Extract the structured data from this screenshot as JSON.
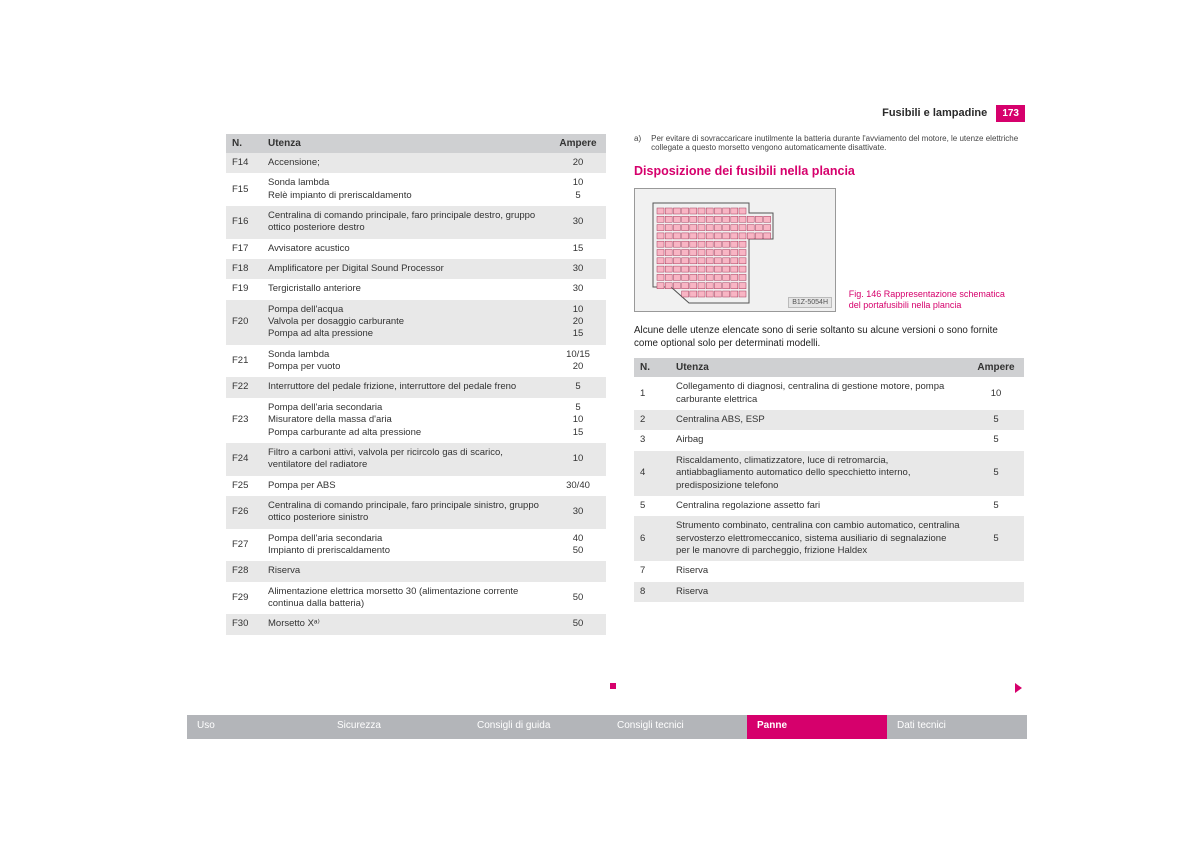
{
  "header": {
    "title": "Fusibili e lampadine",
    "page": "173"
  },
  "colors": {
    "accent": "#d6006c",
    "row_even": "#e8e8e8",
    "row_odd": "#ffffff",
    "header_bg": "#cfd0d2",
    "nav_inactive": "#b3b5b9"
  },
  "table1": {
    "columns": {
      "n": "N.",
      "u": "Utenza",
      "a": "Ampere"
    },
    "rows": [
      {
        "n": "F14",
        "u": "Accensione;",
        "a": "20",
        "bg": "even"
      },
      {
        "n": "F15",
        "u": "Sonda lambda\nRelè impianto di preriscaldamento",
        "a": "10\n5",
        "bg": "odd"
      },
      {
        "n": "F16",
        "u": "Centralina di comando principale, faro principale destro, gruppo ottico posteriore destro",
        "a": "30",
        "bg": "even"
      },
      {
        "n": "F17",
        "u": "Avvisatore acustico",
        "a": "15",
        "bg": "odd"
      },
      {
        "n": "F18",
        "u": "Amplificatore per Digital Sound Processor",
        "a": "30",
        "bg": "even"
      },
      {
        "n": "F19",
        "u": "Tergicristallo anteriore",
        "a": "30",
        "bg": "odd"
      },
      {
        "n": "F20",
        "u": "Pompa dell'acqua\nValvola per dosaggio carburante\nPompa ad alta pressione",
        "a": "10\n20\n15",
        "bg": "even"
      },
      {
        "n": "F21",
        "u": "Sonda lambda\nPompa per vuoto",
        "a": "10/15\n20",
        "bg": "odd"
      },
      {
        "n": "F22",
        "u": "Interruttore del pedale frizione, interruttore del pedale freno",
        "a": "5",
        "bg": "even"
      },
      {
        "n": "F23",
        "u": "Pompa dell'aria secondaria\nMisuratore della massa d'aria\nPompa carburante ad alta pressione",
        "a": "5\n10\n15",
        "bg": "odd"
      },
      {
        "n": "F24",
        "u": "Filtro a carboni attivi, valvola per ricircolo gas di scarico, ventilatore del radiatore",
        "a": "10",
        "bg": "even"
      },
      {
        "n": "F25",
        "u": "Pompa per ABS",
        "a": "30/40",
        "bg": "odd"
      },
      {
        "n": "F26",
        "u": "Centralina di comando principale, faro principale sinistro, gruppo ottico posteriore sinistro",
        "a": "30",
        "bg": "even"
      },
      {
        "n": "F27",
        "u": "Pompa dell'aria secondaria\nImpianto di preriscaldamento",
        "a": "40\n50",
        "bg": "odd"
      },
      {
        "n": "F28",
        "u": "Riserva",
        "a": "",
        "bg": "even"
      },
      {
        "n": "F29",
        "u": "Alimentazione elettrica morsetto 30 (alimentazione corrente continua dalla batteria)",
        "a": "50",
        "bg": "odd"
      },
      {
        "n": "F30",
        "u": "Morsetto Xᵃ⁾",
        "a": "50",
        "bg": "even"
      }
    ]
  },
  "footnote": {
    "marker": "a)",
    "text": "Per evitare di sovraccaricare inutilmente la batteria durante l'avviamento del motore, le utenze elettriche collegate a questo morsetto vengono automaticamente disattivate."
  },
  "section_title": "Disposizione dei fusibili nella plancia",
  "figure": {
    "tag": "B1Z-5054H",
    "caption_bold": "Fig. 146  Rappresentazione schematica del portafusibili nella plancia",
    "fuse_fill": "#f8b5c4",
    "fuse_stroke": "#a83a5a"
  },
  "paragraph": "Alcune delle utenze elencate sono di serie soltanto su alcune versioni o sono fornite come optional solo per determinati modelli.",
  "table2": {
    "columns": {
      "n": "N.",
      "u": "Utenza",
      "a": "Ampere"
    },
    "rows": [
      {
        "n": "1",
        "u": "Collegamento di diagnosi, centralina di gestione motore, pompa carburante elettrica",
        "a": "10",
        "bg": "odd"
      },
      {
        "n": "2",
        "u": "Centralina ABS, ESP",
        "a": "5",
        "bg": "even"
      },
      {
        "n": "3",
        "u": "Airbag",
        "a": "5",
        "bg": "odd"
      },
      {
        "n": "4",
        "u": "Riscaldamento, climatizzatore, luce di retromarcia, antiabbagliamento automatico dello specchietto interno, predisposizione telefono",
        "a": "5",
        "bg": "even"
      },
      {
        "n": "5",
        "u": "Centralina regolazione assetto fari",
        "a": "5",
        "bg": "odd"
      },
      {
        "n": "6",
        "u": "Strumento combinato, centralina con cambio automatico, centralina servosterzo elettromeccanico, sistema ausiliario di segnalazione per le manovre di parcheggio, frizione Haldex",
        "a": "5",
        "bg": "even"
      },
      {
        "n": "7",
        "u": "Riserva",
        "a": "",
        "bg": "odd"
      },
      {
        "n": "8",
        "u": "Riserva",
        "a": "",
        "bg": "even"
      }
    ]
  },
  "nav": {
    "items": [
      "Uso",
      "Sicurezza",
      "Consigli di guida",
      "Consigli tecnici",
      "Panne",
      "Dati tecnici"
    ],
    "active_index": 4
  }
}
